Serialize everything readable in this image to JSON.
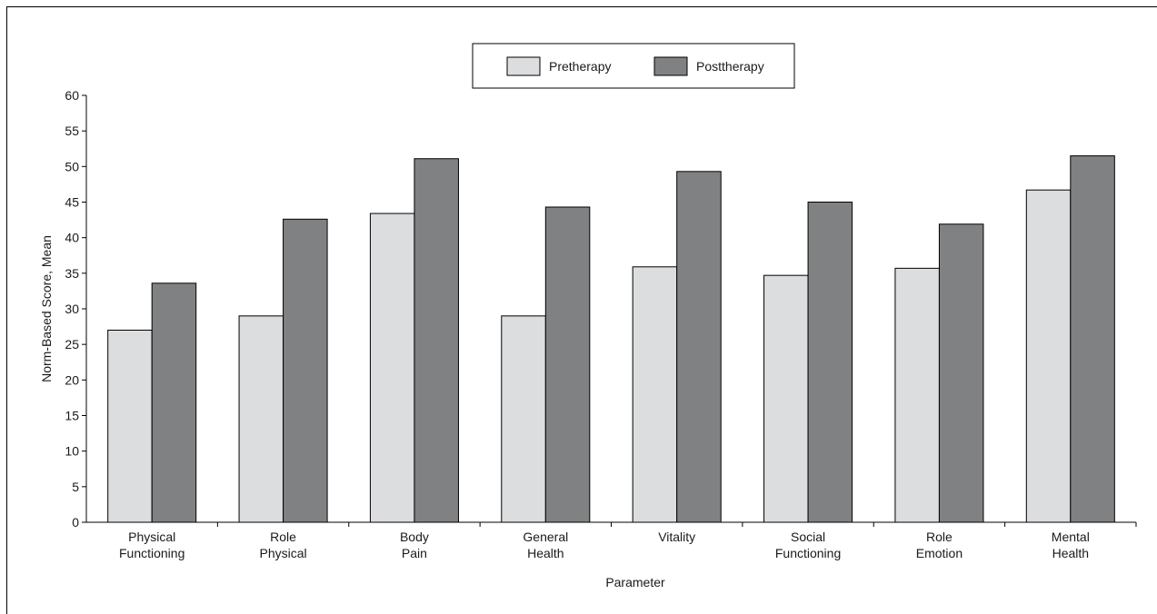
{
  "chart_data": {
    "type": "bar",
    "title": "",
    "xlabel": "Parameter",
    "ylabel": "Norm-Based Score, Mean",
    "ylim": [
      0,
      60
    ],
    "yticks": [
      0,
      5,
      10,
      15,
      20,
      25,
      30,
      35,
      40,
      45,
      50,
      55,
      60
    ],
    "categories": [
      [
        "Physical",
        "Functioning"
      ],
      [
        "Role",
        "Physical"
      ],
      [
        "Body",
        "Pain"
      ],
      [
        "General",
        "Health"
      ],
      [
        "Vitality"
      ],
      [
        "Social",
        "Functioning"
      ],
      [
        "Role",
        "Emotion"
      ],
      [
        "Mental",
        "Health"
      ]
    ],
    "series": [
      {
        "name": "Pretherapy",
        "color": "#dcdddf",
        "values": [
          27.0,
          29.0,
          43.4,
          29.0,
          35.9,
          34.7,
          35.7,
          46.7
        ]
      },
      {
        "name": "Posttherapy",
        "color": "#808183",
        "values": [
          33.6,
          42.6,
          51.1,
          44.3,
          49.3,
          45.0,
          41.9,
          51.5
        ]
      }
    ],
    "legend_position": "top-center",
    "grid": false
  }
}
